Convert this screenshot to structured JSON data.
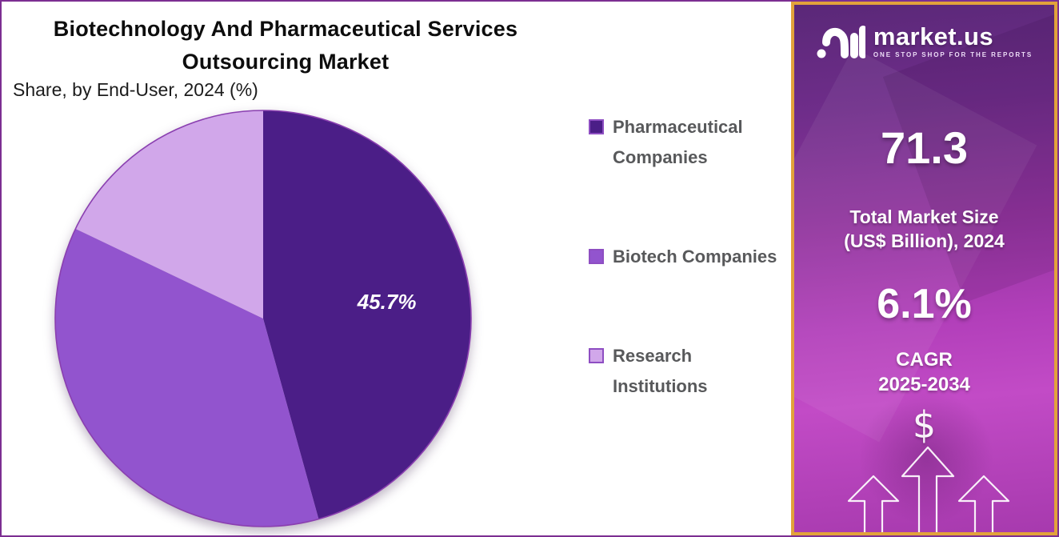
{
  "title": {
    "line1": "Biotechnology And Pharmaceutical Services",
    "line2": "Outsourcing Market"
  },
  "subtitle": "Share, by End-User, 2024 (%)",
  "chart_data": {
    "type": "pie",
    "title": "Biotechnology And Pharmaceutical Services Outsourcing Market",
    "subtitle": "Share, by End-User, 2024 (%)",
    "legend_position": "right",
    "start_angle_deg": 0,
    "direction": "clockwise",
    "slices": [
      {
        "label": "Pharmaceutical Companies",
        "value": 45.7,
        "data_label": "45.7%",
        "color": "#4B1E87",
        "estimated": false
      },
      {
        "label": "Biotech Companies",
        "value": 36.4,
        "data_label": "",
        "color": "#9254CE",
        "estimated": true
      },
      {
        "label": "Research Institutions",
        "value": 17.9,
        "data_label": "",
        "color": "#D1A7EA",
        "estimated": true
      }
    ]
  },
  "sidebar": {
    "logo": {
      "brand": "market.us",
      "tagline": "ONE STOP SHOP FOR THE REPORTS"
    },
    "market_size": {
      "value": "71.3",
      "label_line1": "Total Market Size",
      "label_line2": "(US$ Billion), 2024"
    },
    "cagr": {
      "value": "6.1%",
      "label_line1": "CAGR",
      "label_line2": "2025-2034"
    },
    "dollar_symbol": "$"
  },
  "colors": {
    "outer_border": "#7C2E92",
    "panel_border_gold": "#E2A23B",
    "pie_outline": "#8A3FB0",
    "swatch_border": "#8E4EC2",
    "legend_text": "#58595B",
    "data_label_text": "#FFFFFF",
    "panel_gradient_top": "#5A2878",
    "panel_gradient_mid": "#B23FBA",
    "panel_gradient_bottom": "#A73AAE"
  }
}
